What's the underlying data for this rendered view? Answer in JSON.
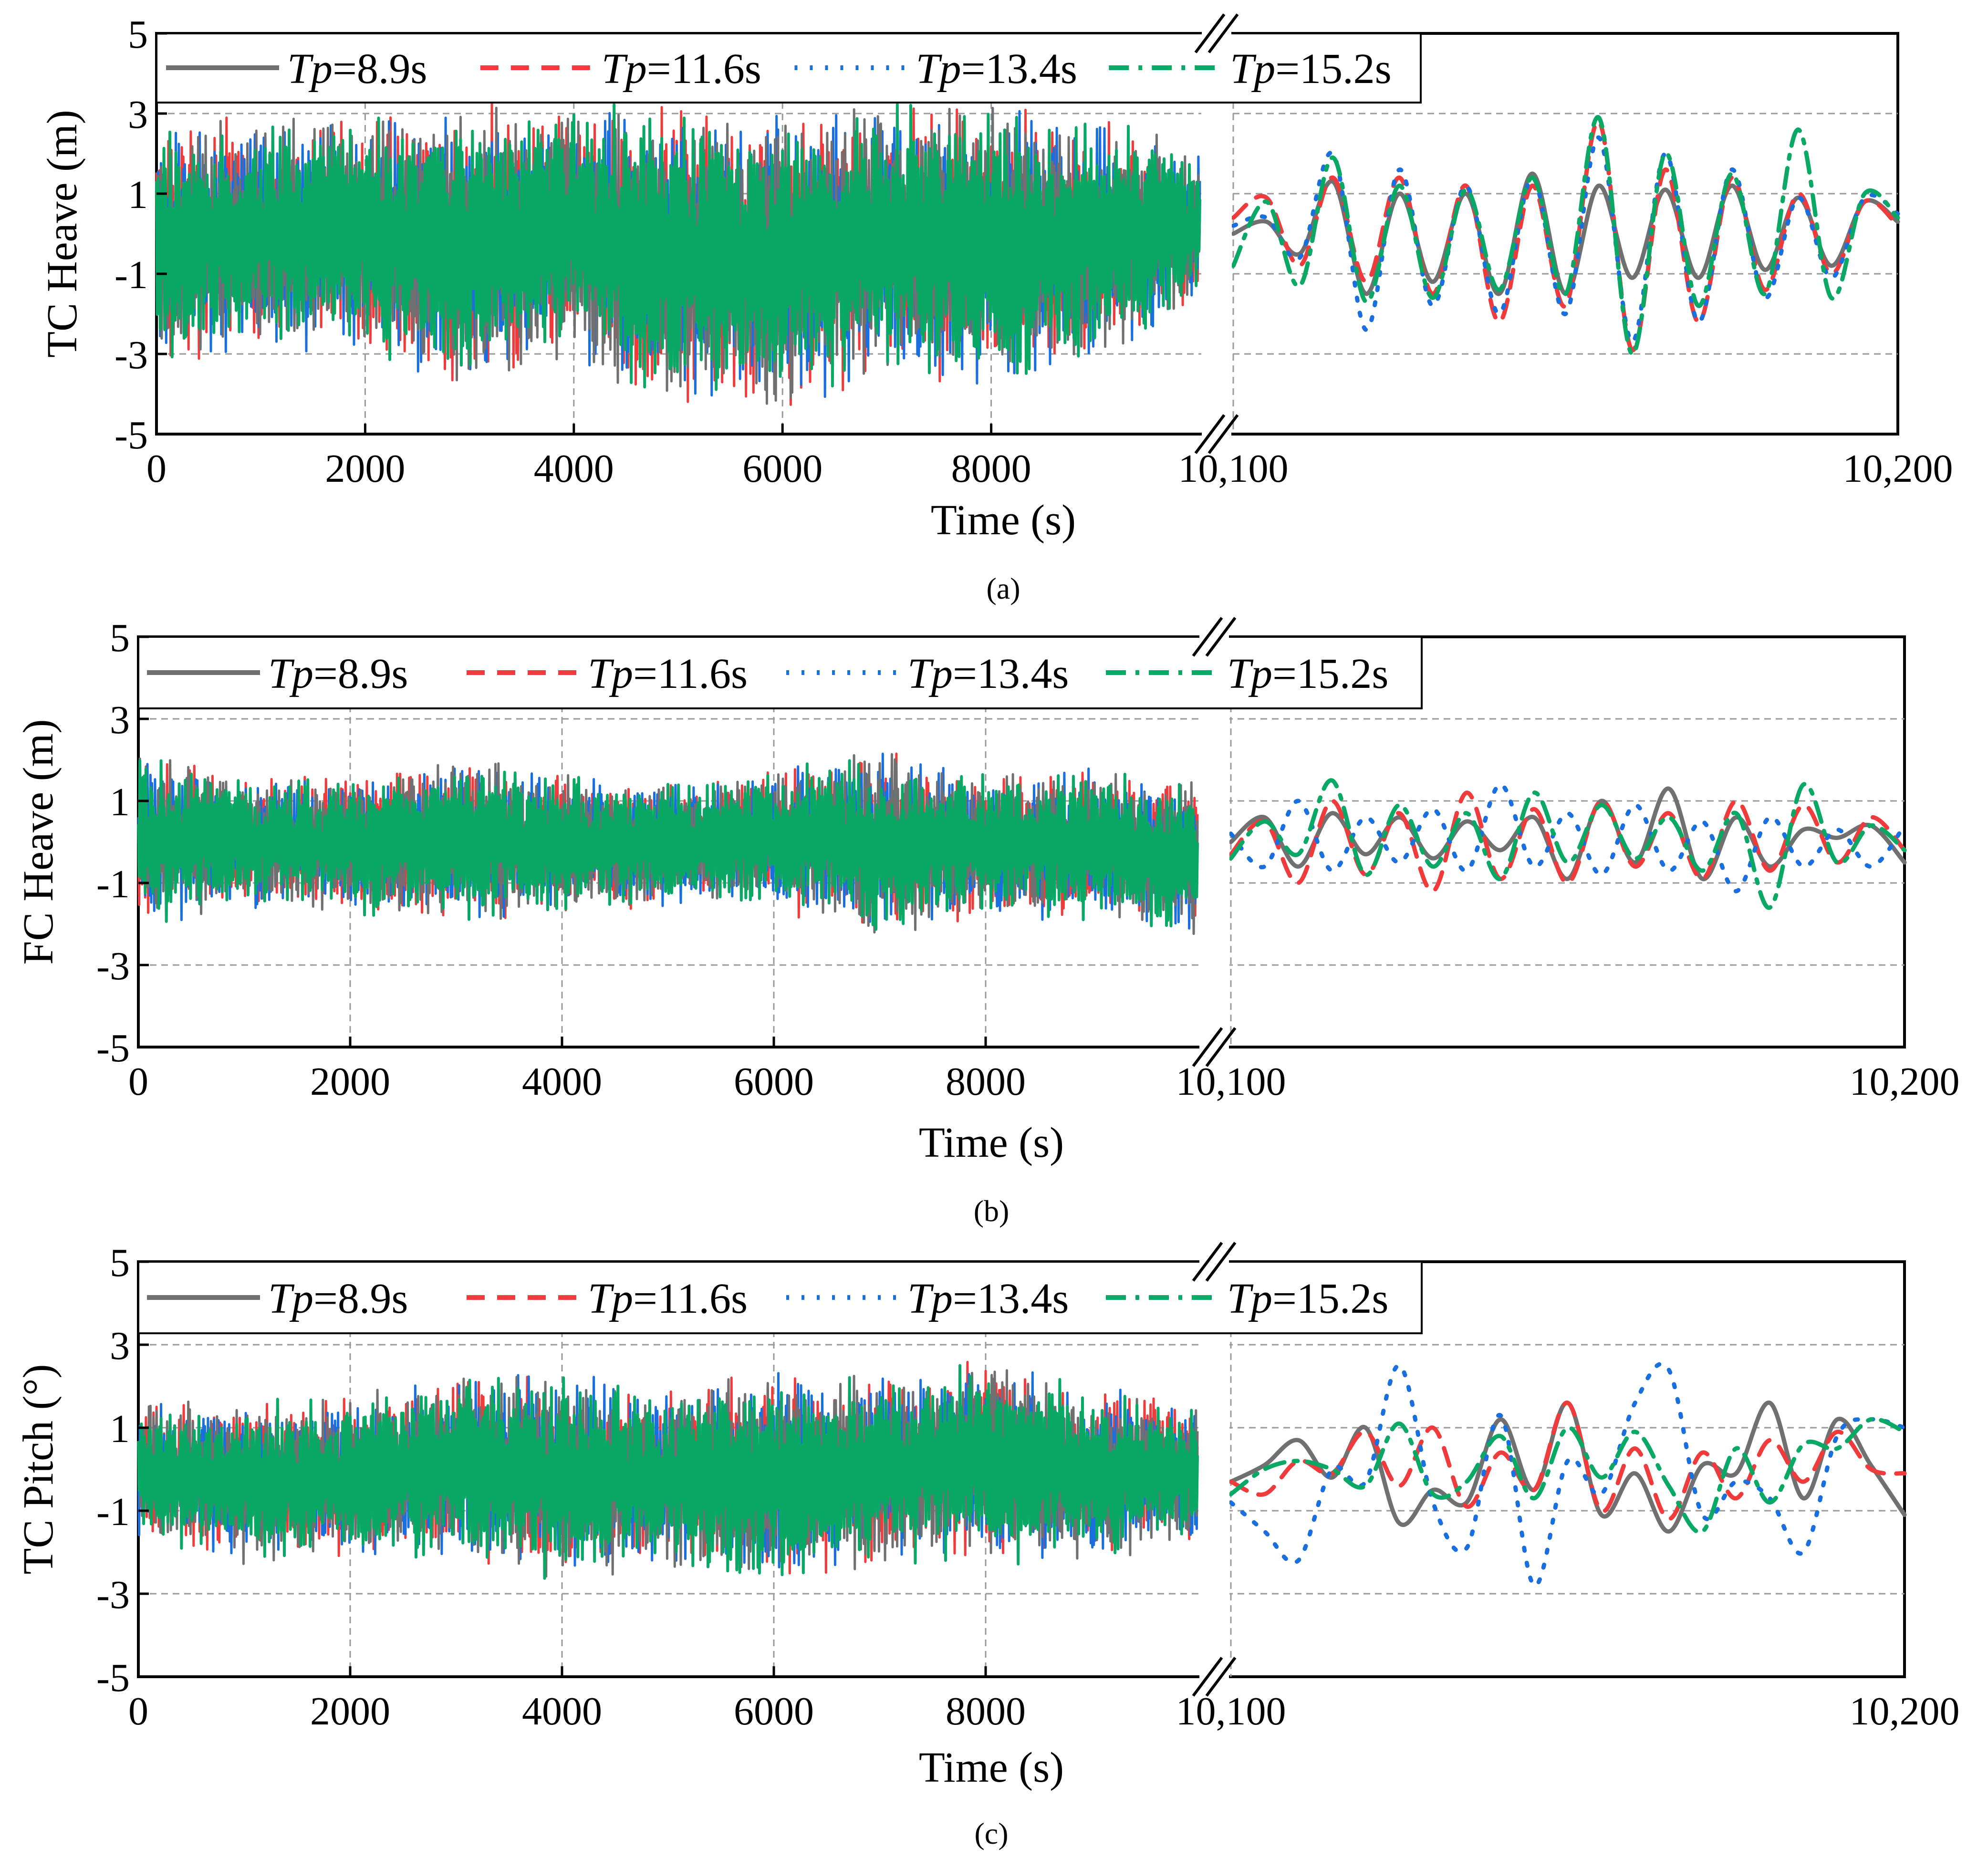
{
  "figure": {
    "legend": {
      "entries": [
        {
          "prefix": "Tp",
          "suffix": "=8.9s",
          "color": "#707070",
          "dash": "solid"
        },
        {
          "prefix": "Tp",
          "suffix": "=11.6s",
          "color": "#ef3b3b",
          "dash": "dashed"
        },
        {
          "prefix": "Tp",
          "suffix": "=13.4s",
          "color": "#1a6fdf",
          "dash": "dotted"
        },
        {
          "prefix": "Tp",
          "suffix": "=15.2s",
          "color": "#0aa865",
          "dash": "dashdot"
        }
      ]
    },
    "panels": [
      {
        "ylabel": "TC Heave (m)",
        "xlabel": "Time (s)",
        "caption": "(a)"
      },
      {
        "ylabel": "FC Heave (m)",
        "xlabel": "Time (s)",
        "caption": "(b)"
      },
      {
        "ylabel": "TC Pitch (°)",
        "xlabel": "Time (s)",
        "caption": "(c)"
      }
    ]
  },
  "chart_data": [
    {
      "type": "line",
      "ylabel": "TC Heave (m)",
      "xlabel": "Time (s)",
      "ylim": [
        -5,
        5
      ],
      "yticks": [
        5,
        3,
        1,
        -1,
        -3,
        -5
      ],
      "x_segments": [
        {
          "range": [
            0,
            10000
          ],
          "ticks": [
            0,
            2000,
            4000,
            6000,
            8000
          ],
          "tick_labels": [
            "0",
            "2000",
            "4000",
            "6000",
            "8000"
          ]
        },
        {
          "range": [
            10100,
            10200
          ],
          "ticks": [
            10100,
            10200
          ],
          "tick_labels": [
            "10,100",
            "10,200"
          ]
        }
      ],
      "axis_break": true,
      "grid": true,
      "legend_position": "top-left",
      "long_record_envelope": {
        "x": [
          0,
          1000,
          2000,
          3000,
          4000,
          5000,
          6000,
          7000,
          8000,
          9000,
          10000
        ],
        "upper": [
          2.9,
          3.0,
          3.1,
          3.5,
          3.3,
          3.5,
          3.3,
          3.4,
          3.4,
          3.0,
          2.2
        ],
        "lower": [
          -3.5,
          -3.0,
          -3.2,
          -4.0,
          -3.3,
          -4.7,
          -4.7,
          -3.6,
          -4.1,
          -3.3,
          -2.0
        ]
      },
      "zoom_window": {
        "x": [
          10100,
          10105,
          10110,
          10115,
          10120,
          10125,
          10130,
          10135,
          10140,
          10145,
          10150,
          10155,
          10160,
          10165,
          10170,
          10175,
          10180,
          10185,
          10190,
          10195,
          10200
        ],
        "series": [
          {
            "name": "Tp=8.9s",
            "values": [
              0.0,
              0.3,
              -0.5,
              1.3,
              -1.5,
              1.0,
              -1.2,
              1.0,
              -1.5,
              1.5,
              -1.5,
              1.2,
              -1.1,
              1.1,
              -1.1,
              1.2,
              -0.9,
              0.9,
              -0.8,
              0.8,
              0.3
            ]
          },
          {
            "name": "Tp=11.6s",
            "values": [
              0.4,
              0.9,
              -0.8,
              1.4,
              -1.2,
              1.4,
              -1.5,
              1.2,
              -2.2,
              1.2,
              -1.8,
              2.8,
              -2.9,
              1.6,
              -2.2,
              1.4,
              -1.4,
              1.0,
              -1.0,
              0.8,
              0.2
            ]
          },
          {
            "name": "Tp=13.4s",
            "values": [
              0.2,
              0.4,
              -0.6,
              2.0,
              -2.4,
              1.6,
              -1.8,
              1.2,
              -2.0,
              1.4,
              -2.0,
              2.4,
              -2.7,
              2.0,
              -2.2,
              1.6,
              -1.6,
              0.9,
              -1.1,
              0.9,
              0.5
            ]
          },
          {
            "name": "Tp=15.2s",
            "values": [
              -0.8,
              0.8,
              -1.3,
              1.9,
              -1.7,
              1.2,
              -1.6,
              1.1,
              -1.4,
              1.4,
              -1.5,
              2.9,
              -3.0,
              2.0,
              -1.8,
              1.5,
              -1.5,
              2.6,
              -1.6,
              1.0,
              0.4
            ]
          }
        ]
      }
    },
    {
      "type": "line",
      "ylabel": "FC Heave (m)",
      "xlabel": "Time (s)",
      "ylim": [
        -5,
        5
      ],
      "yticks": [
        5,
        3,
        1,
        -1,
        -3,
        -5
      ],
      "x_segments": [
        {
          "range": [
            0,
            10000
          ],
          "ticks": [
            0,
            2000,
            4000,
            6000,
            8000
          ],
          "tick_labels": [
            "0",
            "2000",
            "4000",
            "6000",
            "8000"
          ]
        },
        {
          "range": [
            10100,
            10200
          ],
          "ticks": [
            10100,
            10200
          ],
          "tick_labels": [
            "10,100",
            "10,200"
          ]
        }
      ],
      "axis_break": true,
      "grid": true,
      "legend_position": "top-left",
      "long_record_envelope": {
        "x": [
          0,
          1000,
          2000,
          3000,
          4000,
          5000,
          6000,
          7000,
          8000,
          9000,
          10000
        ],
        "upper": [
          2.4,
          1.6,
          1.7,
          2.2,
          1.8,
          1.5,
          1.9,
          2.3,
          1.8,
          1.9,
          1.5
        ],
        "lower": [
          -2.3,
          -1.6,
          -1.8,
          -2.1,
          -1.9,
          -1.6,
          -1.7,
          -2.4,
          -1.9,
          -2.0,
          -2.3
        ]
      },
      "zoom_window": {
        "x": [
          10100,
          10105,
          10110,
          10115,
          10120,
          10125,
          10130,
          10135,
          10140,
          10145,
          10150,
          10155,
          10160,
          10165,
          10170,
          10175,
          10180,
          10185,
          10190,
          10195,
          10200
        ],
        "series": [
          {
            "name": "Tp=8.9s",
            "values": [
              0.0,
              0.6,
              -0.6,
              0.7,
              -0.3,
              0.6,
              -0.4,
              0.5,
              -0.2,
              0.6,
              -0.9,
              1.0,
              -0.5,
              1.3,
              -0.9,
              0.6,
              -0.6,
              0.3,
              0.1,
              0.4,
              -0.5
            ]
          },
          {
            "name": "Tp=11.6s",
            "values": [
              -0.3,
              0.5,
              -1.0,
              1.0,
              -0.8,
              0.7,
              -1.2,
              1.2,
              -0.9,
              0.8,
              -1.0,
              1.0,
              -0.6,
              0.7,
              -0.9,
              1.0,
              -0.7,
              0.9,
              -0.5,
              0.6,
              -0.2
            ]
          },
          {
            "name": "Tp=13.4s",
            "values": [
              0.2,
              -0.6,
              1.0,
              -0.7,
              0.6,
              -0.5,
              0.8,
              -0.7,
              1.4,
              -0.6,
              0.7,
              -0.8,
              0.9,
              -0.7,
              0.5,
              -1.2,
              0.6,
              -0.6,
              0.3,
              -0.6,
              0.4
            ]
          },
          {
            "name": "Tp=15.2s",
            "values": [
              -0.4,
              0.5,
              -0.3,
              1.5,
              -0.8,
              0.9,
              -0.6,
              0.7,
              -0.9,
              1.2,
              -0.5,
              0.9,
              -0.4,
              0.6,
              -0.7,
              0.7,
              -1.6,
              1.4,
              -0.5,
              0.4,
              -0.2
            ]
          }
        ]
      }
    },
    {
      "type": "line",
      "ylabel": "TC Pitch (°)",
      "xlabel": "Time (s)",
      "ylim": [
        -5,
        5
      ],
      "yticks": [
        5,
        3,
        1,
        -1,
        -3,
        -5
      ],
      "x_segments": [
        {
          "range": [
            0,
            10000
          ],
          "ticks": [
            0,
            2000,
            4000,
            6000,
            8000
          ],
          "tick_labels": [
            "0",
            "2000",
            "4000",
            "6000",
            "8000"
          ]
        },
        {
          "range": [
            10100,
            10200
          ],
          "ticks": [
            10100,
            10200
          ],
          "tick_labels": [
            "10,100",
            "10,200"
          ]
        }
      ],
      "axis_break": true,
      "grid": true,
      "legend_position": "top-left",
      "long_record_envelope": {
        "x": [
          0,
          1000,
          2000,
          3000,
          4000,
          5000,
          6000,
          7000,
          8000,
          9000,
          10000
        ],
        "upper": [
          1.6,
          1.8,
          1.8,
          2.5,
          2.5,
          2.0,
          2.4,
          2.3,
          2.8,
          2.1,
          1.7
        ],
        "lower": [
          -1.8,
          -2.3,
          -2.4,
          -2.3,
          -2.9,
          -2.4,
          -2.9,
          -2.4,
          -2.3,
          -2.3,
          -1.8
        ]
      },
      "zoom_window": {
        "x": [
          10100,
          10105,
          10110,
          10115,
          10120,
          10125,
          10130,
          10135,
          10140,
          10145,
          10150,
          10155,
          10160,
          10165,
          10170,
          10175,
          10180,
          10185,
          10190,
          10195,
          10200
        ],
        "series": [
          {
            "name": "Tp=8.9s",
            "values": [
              -0.3,
              0.1,
              0.7,
              -0.2,
              1.0,
              -1.3,
              -0.5,
              -0.8,
              1.2,
              -0.5,
              1.6,
              -1.1,
              -0.1,
              -1.5,
              0.1,
              -0.1,
              1.6,
              -0.7,
              1.2,
              0.1,
              -1.1
            ]
          },
          {
            "name": "Tp=11.6s",
            "values": [
              -0.3,
              -0.6,
              0.2,
              -0.1,
              0.9,
              -0.4,
              1.0,
              -0.9,
              0.4,
              -0.5,
              1.6,
              -1.0,
              0.5,
              -1.2,
              0.4,
              -0.7,
              0.7,
              -0.3,
              0.9,
              0.0,
              -0.1
            ]
          },
          {
            "name": "Tp=13.4s",
            "values": [
              -0.8,
              -1.5,
              -2.2,
              0.0,
              -0.3,
              2.5,
              -0.8,
              -1.9,
              1.3,
              -2.8,
              0.2,
              -0.6,
              1.6,
              2.4,
              -1.1,
              -0.3,
              -0.7,
              -2.0,
              0.8,
              1.2,
              1.0
            ]
          },
          {
            "name": "Tp=15.2s",
            "values": [
              -0.6,
              0.0,
              0.2,
              0.0,
              -0.4,
              1.1,
              -0.6,
              -0.3,
              0.8,
              -0.7,
              1.0,
              -0.2,
              0.9,
              -0.4,
              -1.5,
              0.5,
              -0.8,
              0.6,
              0.5,
              1.2,
              0.9
            ]
          }
        ]
      }
    }
  ]
}
